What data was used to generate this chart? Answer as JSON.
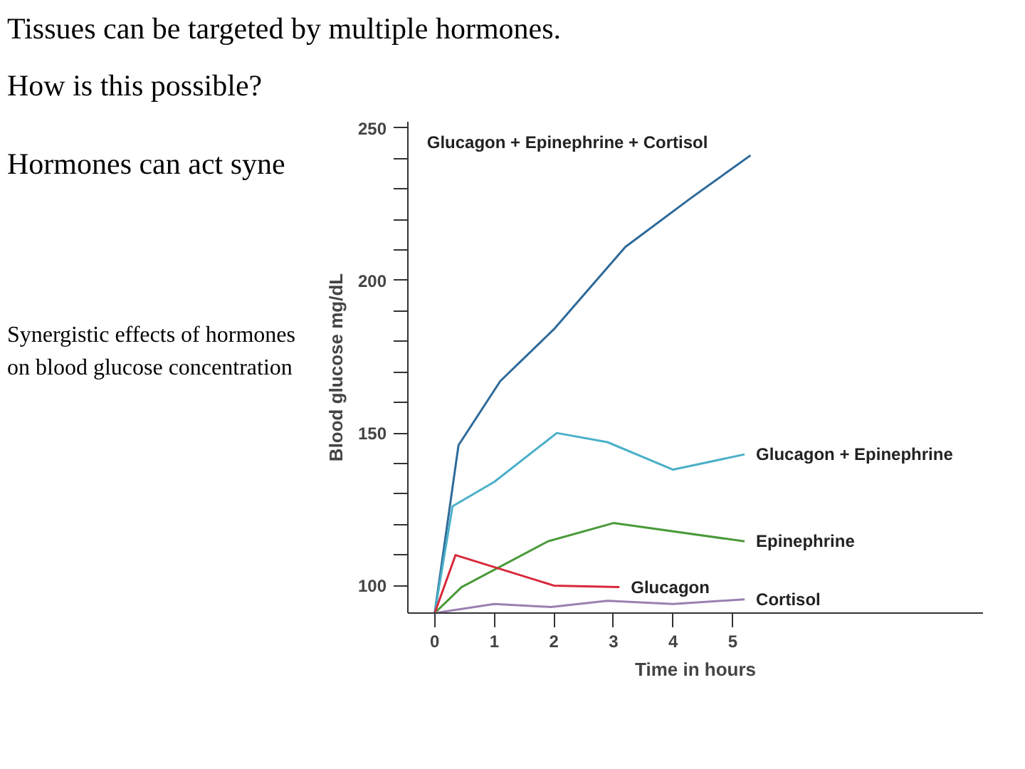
{
  "chart_data": {
    "type": "line",
    "title": "Tissues can be targeted by multiple hormones.",
    "subtitle": "How is this possible?",
    "annotations": [
      "Hormones can act syne",
      "Synergistic effects of hormones on blood glucose concentration"
    ],
    "xlabel": "Time in hours",
    "ylabel": "Blood glucose mg/dL",
    "xlim": [
      -0.45,
      9.2
    ],
    "xticks": [
      0,
      1,
      2,
      3,
      4,
      5
    ],
    "ylim": [
      91,
      252
    ],
    "yticks": [
      {
        "value": 100,
        "label": "100"
      },
      {
        "value": 110,
        "label": null
      },
      {
        "value": 120,
        "label": null
      },
      {
        "value": 130,
        "label": null
      },
      {
        "value": 140,
        "label": null
      },
      {
        "value": 150,
        "label": "150"
      },
      {
        "value": 160,
        "label": null
      },
      {
        "value": 170,
        "label": null
      },
      {
        "value": 180,
        "label": null
      },
      {
        "value": 190,
        "label": null
      },
      {
        "value": 200,
        "label": "200"
      },
      {
        "value": 210,
        "label": null
      },
      {
        "value": 220,
        "label": null
      },
      {
        "value": 230,
        "label": null
      },
      {
        "value": 240,
        "label": null
      },
      {
        "value": 250,
        "label": "250"
      }
    ],
    "grid": false,
    "legend": false,
    "marker": "none",
    "line_style": "solid",
    "series": [
      {
        "name": "Glucagon + Epinephrine + Cortisol",
        "color": "#2e6a9a",
        "x": [
          0,
          0.4,
          1.1,
          2,
          3.2,
          4.3,
          5.3
        ],
        "values": [
          91,
          146,
          167,
          184,
          211,
          227,
          241
        ]
      },
      {
        "name": "Glucagon + Epinephrine",
        "color": "#4bb0c8",
        "x": [
          0,
          0.3,
          1.0,
          2.05,
          2.9,
          4.0,
          5.2
        ],
        "values": [
          91,
          126,
          134,
          150,
          147,
          138,
          143
        ]
      },
      {
        "name": "Epinephrine",
        "color": "#4a9a3a",
        "x": [
          0,
          0.45,
          1.9,
          3.0,
          5.2
        ],
        "values": [
          91,
          99.5,
          114.5,
          120.5,
          114.5
        ]
      },
      {
        "name": "Glucagon",
        "color": "#d8283a",
        "x": [
          0,
          0.35,
          2.0,
          3.1
        ],
        "values": [
          91,
          110,
          100,
          99.5
        ]
      },
      {
        "name": "Cortisol",
        "color": "#9a80b0",
        "x": [
          0,
          1.0,
          1.95,
          2.9,
          4.0,
          5.2
        ],
        "values": [
          91,
          94,
          93,
          95,
          94,
          95.5
        ]
      }
    ]
  }
}
